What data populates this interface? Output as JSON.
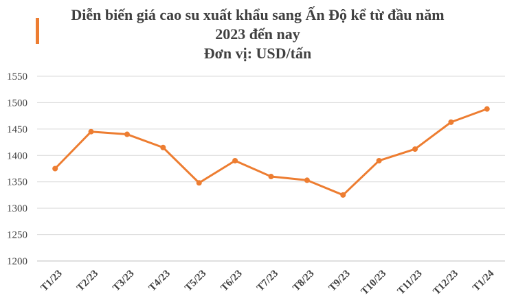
{
  "chart_data": {
    "type": "line",
    "title": "Diễn biến giá cao su xuất khẩu sang Ấn Độ kể từ đầu năm 2023 đến nay",
    "subtitle": "Đơn vị: USD/tấn",
    "categories": [
      "T1/23",
      "T2/23",
      "T3/23",
      "T4/23",
      "T5/23",
      "T6/23",
      "T7/23",
      "T8/23",
      "T9/23",
      "T10/23",
      "T11/23",
      "T12/23",
      "T1/24"
    ],
    "values": [
      1375,
      1445,
      1440,
      1415,
      1348,
      1390,
      1360,
      1353,
      1325,
      1390,
      1412,
      1463,
      1488
    ],
    "color": "#ed7d31",
    "ylim": [
      1200,
      1550
    ],
    "yticks": [
      1200,
      1250,
      1300,
      1350,
      1400,
      1450,
      1500,
      1550
    ],
    "grid": true
  }
}
